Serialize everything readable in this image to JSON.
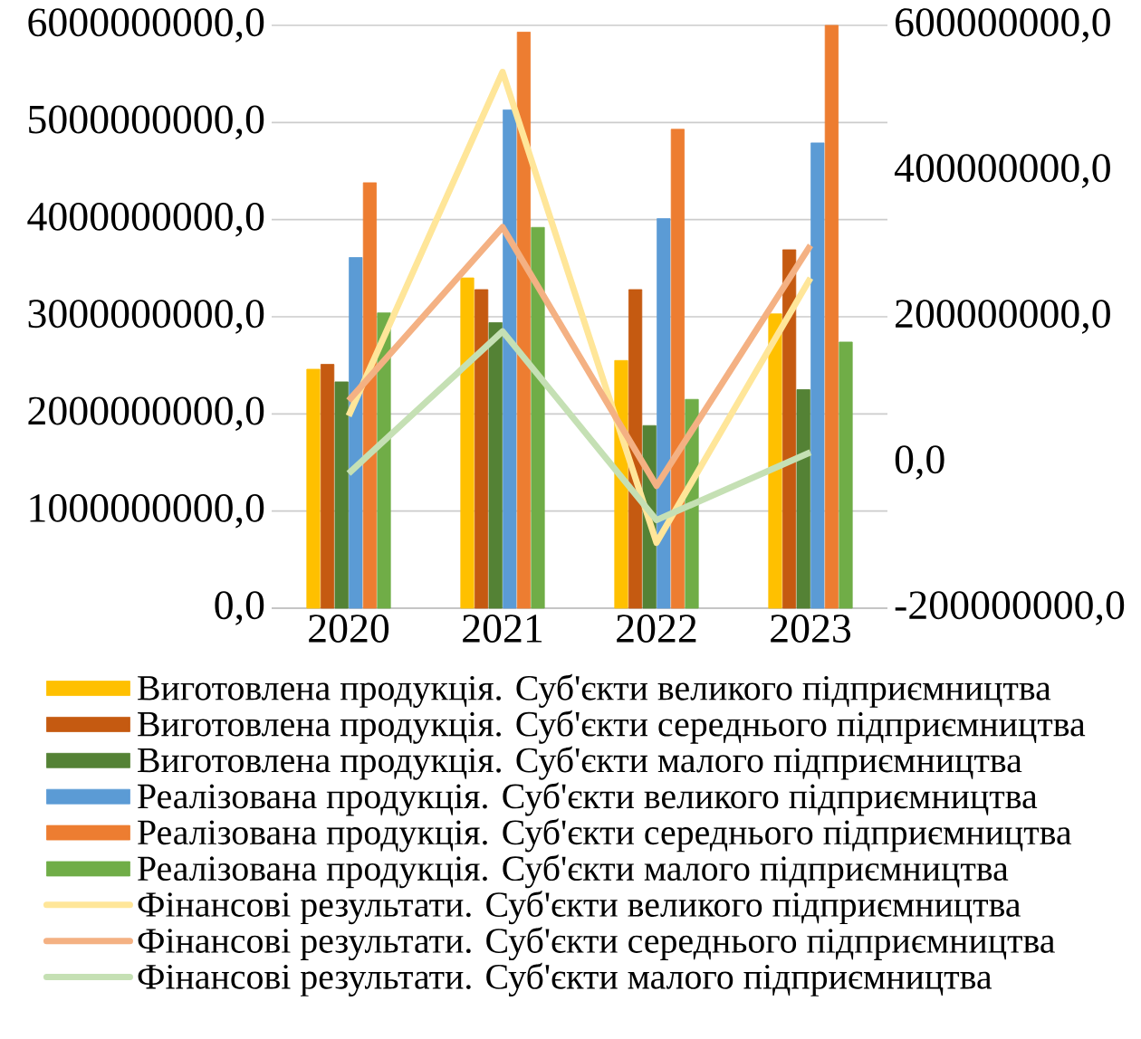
{
  "chart_data": {
    "type": "bar",
    "categories": [
      "2020",
      "2021",
      "2022",
      "2023"
    ],
    "series": [
      {
        "name": "Виготовлена продукція. Суб'єкти великого підприємництва",
        "color": "#ffc000",
        "values": [
          2460000000,
          3400000000,
          2550000000,
          3030000000
        ]
      },
      {
        "name": "Виготовлена продукція. Суб'єкти середнього підприємництва",
        "color": "#c55a11",
        "values": [
          2510000000,
          3280000000,
          3280000000,
          3690000000
        ]
      },
      {
        "name": "Виготовлена продукція. Суб'єкти малого підприємництва",
        "color": "#548235",
        "values": [
          2330000000,
          2940000000,
          1880000000,
          2250000000
        ]
      },
      {
        "name": "Реалізована продукція. Суб'єкти великого підприємництва",
        "color": "#5b9bd5",
        "values": [
          3610000000,
          5130000000,
          4010000000,
          4790000000
        ]
      },
      {
        "name": "Реалізована продукція. Суб'єкти середнього підприємництва",
        "color": "#ed7d31",
        "values": [
          4380000000,
          5930000000,
          4930000000,
          6000000000
        ]
      },
      {
        "name": "Реалізована продукція. Суб'єкти малого підприємництва",
        "color": "#70ad47",
        "values": [
          3040000000,
          3920000000,
          2150000000,
          2740000000
        ]
      },
      {
        "name": "Фінансові результати. Суб'єкти великого підприємництва",
        "color": "#ffe699",
        "type": "line",
        "axis": "y2",
        "values": [
          64000000,
          536000000,
          -110000000,
          253000000
        ]
      },
      {
        "name": "Фінансові результати. Суб'єкти середнього підприємництва",
        "color": "#f4b183",
        "type": "line",
        "axis": "y2",
        "values": [
          85000000,
          323000000,
          -32000000,
          298000000
        ]
      },
      {
        "name": "Фінансові результати. Суб'єкти малого підприємництва",
        "color": "#c5e0b4",
        "type": "line",
        "axis": "y2",
        "values": [
          -15000000,
          180000000,
          -79000000,
          14000000
        ]
      }
    ],
    "ylim": [
      0,
      6000000000
    ],
    "yticks": [
      {
        "value": 0,
        "label": "0,0"
      },
      {
        "value": 1000000000,
        "label": "1000000000,0"
      },
      {
        "value": 2000000000,
        "label": "2000000000,0"
      },
      {
        "value": 3000000000,
        "label": "3000000000,0"
      },
      {
        "value": 4000000000,
        "label": "4000000000,0"
      },
      {
        "value": 5000000000,
        "label": "5000000000,0"
      },
      {
        "value": 6000000000,
        "label": "6000000000,0"
      }
    ],
    "y2lim": [
      -200000000,
      600000000
    ],
    "y2ticks": [
      {
        "value": -200000000,
        "label": "-200000000,0"
      },
      {
        "value": 0,
        "label": "0,0"
      },
      {
        "value": 200000000,
        "label": "200000000,0"
      },
      {
        "value": 400000000,
        "label": "400000000,0"
      },
      {
        "value": 600000000,
        "label": "600000000,0"
      }
    ],
    "grid": "y",
    "legend": "bottom",
    "marker": "none",
    "line_style": "solid"
  }
}
